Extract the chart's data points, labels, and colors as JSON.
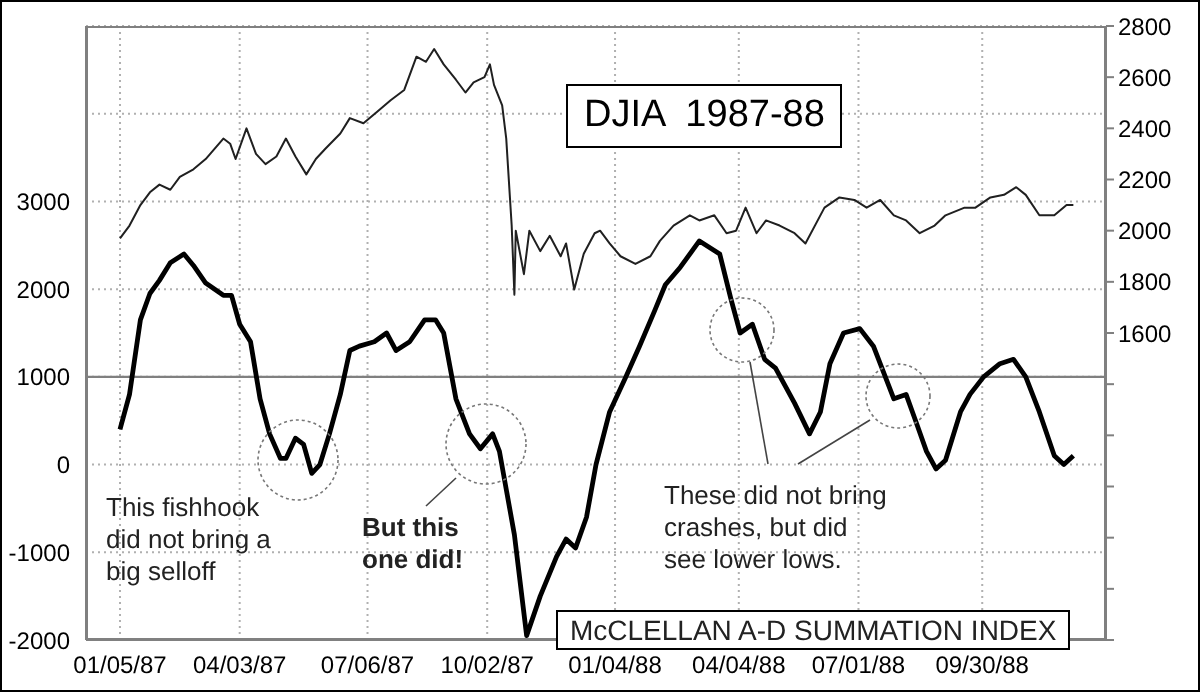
{
  "chart_data": {
    "type": "line",
    "title": "DJIA  1987-88",
    "annotations": [
      "McCLELLAN A-D SUMMATION INDEX",
      "This fishhook\ndid not bring a\nbig selloff",
      "But this\none did!",
      "These did not bring\ncrashes, but did\nsee lower lows."
    ],
    "xlim": [
      "1986-12-11",
      "1988-12-30"
    ],
    "xticks": [
      {
        "value": "1987-01-05",
        "label": "01/05/87"
      },
      {
        "value": "1987-04-03",
        "label": "04/03/87"
      },
      {
        "value": "1987-07-06",
        "label": "07/06/87"
      },
      {
        "value": "1987-10-02",
        "label": "10/02/87"
      },
      {
        "value": "1988-01-04",
        "label": "01/04/88"
      },
      {
        "value": "1988-04-04",
        "label": "04/04/88"
      },
      {
        "value": "1988-07-01",
        "label": "07/01/88"
      },
      {
        "value": "1988-09-30",
        "label": "09/30/88"
      }
    ],
    "ylim": [
      -2000,
      5000
    ],
    "yticks": [
      -2000,
      -1000,
      0,
      1000,
      2000,
      3000,
      {
        "value": 4000,
        "label": null
      }
    ],
    "y2lim": [
      400,
      2800
    ],
    "y2ticks": [
      {
        "value": 400,
        "label": null
      },
      {
        "value": 600,
        "label": null
      },
      {
        "value": 800,
        "label": null
      },
      {
        "value": 1000,
        "label": null
      },
      {
        "value": 1200,
        "label": null
      },
      {
        "value": 1400,
        "label": null
      },
      1600,
      1800,
      2000,
      2200,
      2400,
      2600,
      2800
    ],
    "grid": true,
    "ref_lines": [
      {
        "axis": "y",
        "value": 1000,
        "color": "#808080"
      }
    ],
    "series": [
      {
        "axis": "y2",
        "color": "#202020",
        "x": [
          "1987-01-05",
          "1987-01-12",
          "1987-01-20",
          "1987-01-27",
          "1987-02-03",
          "1987-02-11",
          "1987-02-18",
          "1987-02-28",
          "1987-03-09",
          "1987-03-22",
          "1987-03-27",
          "1987-03-31",
          "1987-04-08",
          "1987-04-15",
          "1987-04-22",
          "1987-04-30",
          "1987-05-07",
          "1987-05-14",
          "1987-05-22",
          "1987-05-29",
          "1987-06-05",
          "1987-06-16",
          "1987-06-23",
          "1987-07-03",
          "1987-07-12",
          "1987-07-23",
          "1987-08-02",
          "1987-08-11",
          "1987-08-18",
          "1987-08-24",
          "1987-08-31",
          "1987-09-09",
          "1987-09-16",
          "1987-09-22",
          "1987-09-30",
          "1987-10-04",
          "1987-10-07",
          "1987-10-13",
          "1987-10-16",
          "1987-10-20",
          "1987-10-22",
          "1987-10-23",
          "1987-10-29",
          "1987-11-02",
          "1987-11-10",
          "1987-11-17",
          "1987-11-25",
          "1987-11-29",
          "1987-12-05",
          "1987-12-12",
          "1987-12-20",
          "1987-12-24",
          "1987-12-31",
          "1988-01-08",
          "1988-01-19",
          "1988-01-30",
          "1988-02-06",
          "1988-02-16",
          "1988-02-28",
          "1988-03-06",
          "1988-03-17",
          "1988-03-26",
          "1988-04-02",
          "1988-04-09",
          "1988-04-17",
          "1988-04-24",
          "1988-05-04",
          "1988-05-15",
          "1988-05-23",
          "1988-06-06",
          "1988-06-17",
          "1988-06-28",
          "1988-07-07",
          "1988-07-17",
          "1988-07-27",
          "1988-08-05",
          "1988-08-15",
          "1988-08-26",
          "1988-09-03",
          "1988-09-17",
          "1988-09-25",
          "1988-10-06",
          "1988-10-16",
          "1988-10-25",
          "1988-11-01",
          "1988-11-11",
          "1988-11-22",
          "1988-12-01",
          "1988-12-06"
        ],
        "values": [
          1970,
          2020,
          2100,
          2150,
          2180,
          2160,
          2210,
          2240,
          2280,
          2360,
          2340,
          2280,
          2400,
          2300,
          2260,
          2290,
          2360,
          2290,
          2220,
          2280,
          2320,
          2380,
          2440,
          2420,
          2460,
          2510,
          2550,
          2680,
          2660,
          2710,
          2650,
          2590,
          2540,
          2580,
          2600,
          2650,
          2570,
          2490,
          2360,
          2020,
          1750,
          2000,
          1830,
          2000,
          1920,
          1980,
          1900,
          1950,
          1770,
          1910,
          1990,
          2000,
          1950,
          1900,
          1870,
          1900,
          1960,
          2020,
          2060,
          2040,
          2060,
          1990,
          2000,
          2090,
          1990,
          2040,
          2020,
          1990,
          1950,
          2090,
          2130,
          2120,
          2090,
          2120,
          2060,
          2040,
          1990,
          2020,
          2060,
          2090,
          2090,
          2130,
          2140,
          2170,
          2140,
          2060,
          2060,
          2100,
          2100
        ]
      },
      {
        "axis": "y",
        "color": "#000000",
        "x": [
          "1987-01-05",
          "1987-01-12",
          "1987-01-20",
          "1987-01-27",
          "1987-02-03",
          "1987-02-11",
          "1987-02-21",
          "1987-02-28",
          "1987-03-09",
          "1987-03-22",
          "1987-03-28",
          "1987-04-03",
          "1987-04-11",
          "1987-04-18",
          "1987-04-25",
          "1987-05-03",
          "1987-05-07",
          "1987-05-14",
          "1987-05-20",
          "1987-05-26",
          "1987-06-01",
          "1987-06-08",
          "1987-06-16",
          "1987-06-23",
          "1987-06-30",
          "1987-07-11",
          "1987-07-20",
          "1987-07-27",
          "1987-08-06",
          "1987-08-17",
          "1987-08-25",
          "1987-08-31",
          "1987-09-09",
          "1987-09-19",
          "1987-09-27",
          "1987-10-06",
          "1987-10-11",
          "1987-10-22",
          "1987-10-31",
          "1987-11-10",
          "1987-11-22",
          "1987-11-29",
          "1987-12-06",
          "1987-12-14",
          "1987-12-21",
          "1987-12-31",
          "1988-01-12",
          "1988-01-22",
          "1988-02-02",
          "1988-02-10",
          "1988-02-21",
          "1988-03-06",
          "1988-03-21",
          "1988-03-29",
          "1988-04-05",
          "1988-04-14",
          "1988-04-23",
          "1988-05-01",
          "1988-05-15",
          "1988-05-26",
          "1988-06-03",
          "1988-06-10",
          "1988-06-20",
          "1988-07-02",
          "1988-07-12",
          "1988-07-27",
          "1988-08-05",
          "1988-08-12",
          "1988-08-20",
          "1988-08-27",
          "1988-09-03",
          "1988-09-14",
          "1988-09-21",
          "1988-10-01",
          "1988-10-13",
          "1988-10-23",
          "1988-11-01",
          "1988-11-11",
          "1988-11-22",
          "1988-11-29",
          "1988-12-06"
        ],
        "values": [
          400,
          800,
          1650,
          1950,
          2100,
          2300,
          2400,
          2270,
          2070,
          1930,
          1930,
          1600,
          1400,
          750,
          350,
          70,
          70,
          300,
          230,
          -100,
          0,
          350,
          800,
          1300,
          1350,
          1400,
          1500,
          1300,
          1400,
          1650,
          1650,
          1500,
          750,
          350,
          180,
          350,
          150,
          -800,
          -1950,
          -1500,
          -1050,
          -850,
          -950,
          -600,
          0,
          600,
          1000,
          1350,
          1750,
          2050,
          2250,
          2550,
          2400,
          1900,
          1500,
          1600,
          1200,
          1100,
          700,
          350,
          600,
          1150,
          1500,
          1550,
          1350,
          750,
          800,
          500,
          150,
          -50,
          50,
          600,
          800,
          1000,
          1150,
          1200,
          1000,
          600,
          100,
          0,
          100
        ]
      }
    ]
  }
}
